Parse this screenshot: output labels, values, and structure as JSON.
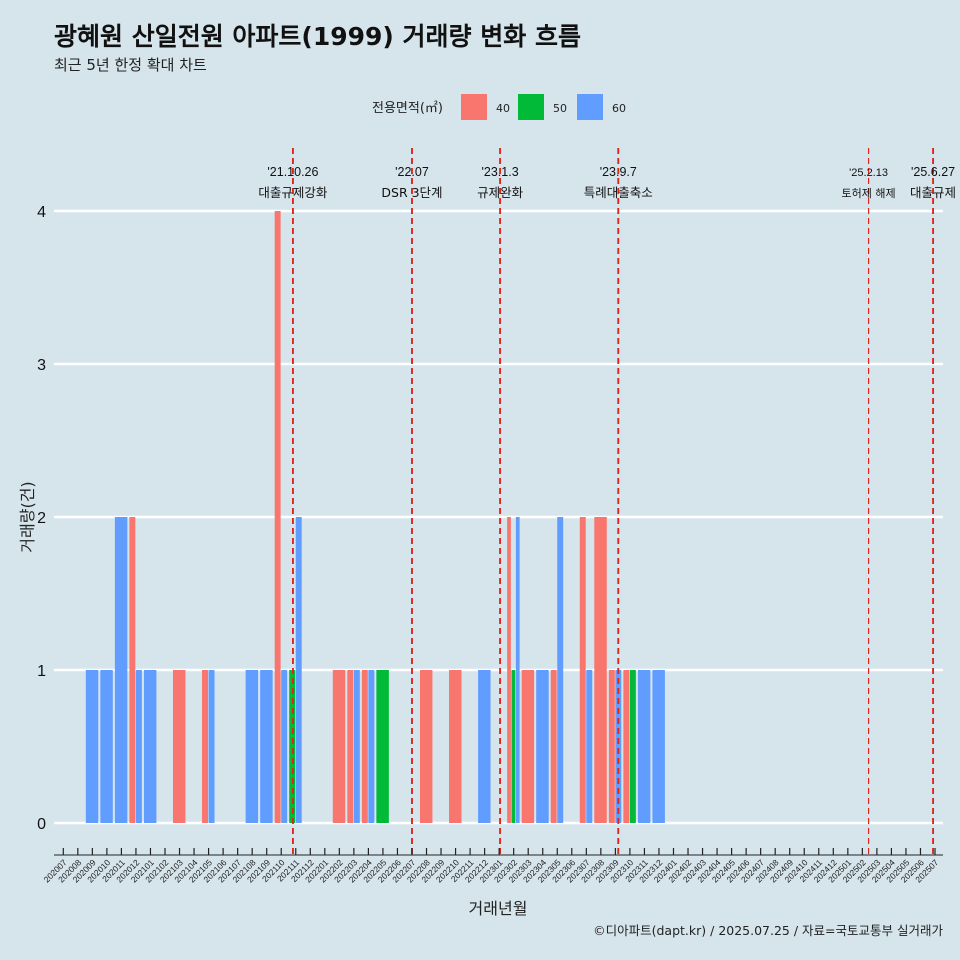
{
  "chart_data": {
    "type": "bar",
    "title": "광혜원 산일전원 아파트(1999) 거래량 변화 흐름",
    "subtitle": "최근 5년 한정 확대 차트",
    "xlabel": "거래년월",
    "ylabel": "거래량(건)",
    "caption": "©디아파트(dapt.kr) / 2025.07.25 / 자료=국토교통부 실거래가",
    "ylim": [
      -0.18,
      4.35
    ],
    "yticks": [
      0,
      1,
      2,
      3,
      4
    ],
    "legend": {
      "title": "전용면적(㎡)",
      "position": "top",
      "items": [
        {
          "label": "40",
          "color": "#F8766D"
        },
        {
          "label": "50",
          "color": "#00BA38"
        },
        {
          "label": "60",
          "color": "#619CFF"
        }
      ]
    },
    "categories": [
      "202007",
      "202008",
      "202009",
      "202010",
      "202011",
      "202012",
      "202101",
      "202102",
      "202103",
      "202104",
      "202105",
      "202106",
      "202107",
      "202108",
      "202109",
      "202110",
      "202111",
      "202112",
      "202201",
      "202202",
      "202203",
      "202204",
      "202205",
      "202206",
      "202207",
      "202208",
      "202209",
      "202210",
      "202211",
      "202212",
      "202301",
      "202302",
      "202303",
      "202304",
      "202305",
      "202306",
      "202307",
      "202308",
      "202309",
      "202310",
      "202311",
      "202312",
      "202401",
      "202402",
      "202403",
      "202404",
      "202405",
      "202406",
      "202407",
      "202408",
      "202409",
      "202410",
      "202411",
      "202412",
      "202501",
      "202502",
      "202503",
      "202504",
      "202505",
      "202506",
      "202507"
    ],
    "bars": [
      {
        "month": "202009",
        "size": "60",
        "value": 1
      },
      {
        "month": "202010",
        "size": "60",
        "value": 1
      },
      {
        "month": "202011",
        "size": "60",
        "value": 2
      },
      {
        "month": "202012",
        "size": "40",
        "value": 2
      },
      {
        "month": "202012",
        "size": "60",
        "value": 1
      },
      {
        "month": "202101",
        "size": "60",
        "value": 1
      },
      {
        "month": "202103",
        "size": "40",
        "value": 1
      },
      {
        "month": "202105",
        "size": "40",
        "value": 1
      },
      {
        "month": "202105",
        "size": "60",
        "value": 1
      },
      {
        "month": "202108",
        "size": "60",
        "value": 1
      },
      {
        "month": "202109",
        "size": "60",
        "value": 1
      },
      {
        "month": "202110",
        "size": "40",
        "value": 4
      },
      {
        "month": "202110",
        "size": "60",
        "value": 1
      },
      {
        "month": "202111",
        "size": "50",
        "value": 1
      },
      {
        "month": "202111",
        "size": "60",
        "value": 2
      },
      {
        "month": "202202",
        "size": "40",
        "value": 1
      },
      {
        "month": "202203",
        "size": "40",
        "value": 1
      },
      {
        "month": "202203",
        "size": "60",
        "value": 1
      },
      {
        "month": "202204",
        "size": "40",
        "value": 1
      },
      {
        "month": "202204",
        "size": "60",
        "value": 1
      },
      {
        "month": "202205",
        "size": "50",
        "value": 1
      },
      {
        "month": "202208",
        "size": "40",
        "value": 1
      },
      {
        "month": "202210",
        "size": "40",
        "value": 1
      },
      {
        "month": "202212",
        "size": "60",
        "value": 1
      },
      {
        "month": "202302",
        "size": "40",
        "value": 2
      },
      {
        "month": "202302",
        "size": "50",
        "value": 1
      },
      {
        "month": "202302",
        "size": "60",
        "value": 2
      },
      {
        "month": "202303",
        "size": "40",
        "value": 1
      },
      {
        "month": "202304",
        "size": "60",
        "value": 1
      },
      {
        "month": "202305",
        "size": "40",
        "value": 1
      },
      {
        "month": "202305",
        "size": "60",
        "value": 2
      },
      {
        "month": "202307",
        "size": "40",
        "value": 2
      },
      {
        "month": "202307",
        "size": "60",
        "value": 1
      },
      {
        "month": "202308",
        "size": "40",
        "value": 2
      },
      {
        "month": "202309",
        "size": "40",
        "value": 1
      },
      {
        "month": "202309",
        "size": "60",
        "value": 1
      },
      {
        "month": "202310",
        "size": "40",
        "value": 1
      },
      {
        "month": "202310",
        "size": "50",
        "value": 1
      },
      {
        "month": "202311",
        "size": "60",
        "value": 1
      },
      {
        "month": "202312",
        "size": "60",
        "value": 1
      }
    ],
    "events": [
      {
        "date": "'21.10.26",
        "label": "대출규제강화",
        "at": "2021-10-26",
        "emphasis": "bold"
      },
      {
        "date": "'22.07",
        "label": "DSR 3단계",
        "at": "2022-07-01",
        "emphasis": "bold"
      },
      {
        "date": "'23.1.3",
        "label": "규제완화",
        "at": "2023-01-03",
        "emphasis": "bold"
      },
      {
        "date": "'23.9.7",
        "label": "특례대출축소",
        "at": "2023-09-07",
        "emphasis": "bold"
      },
      {
        "date": "'25.2.13",
        "label": "토허제 해제",
        "at": "2025-02-13",
        "emphasis": "light"
      },
      {
        "date": "'25.6.27",
        "label": "대출규제",
        "at": "2025-06-27",
        "emphasis": "bold"
      }
    ]
  }
}
